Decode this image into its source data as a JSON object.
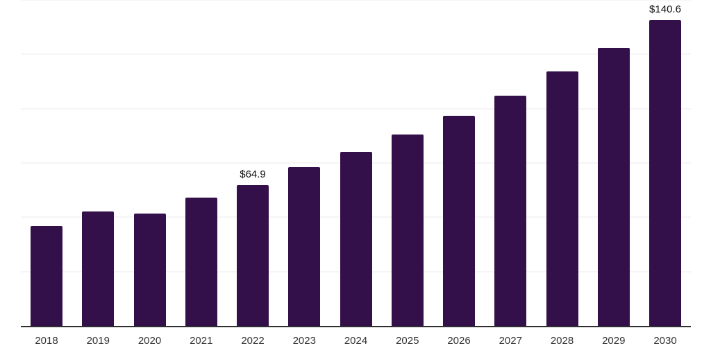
{
  "chart_data": {
    "type": "bar",
    "title": "",
    "xlabel": "",
    "ylabel": "",
    "categories": [
      "2018",
      "2019",
      "2020",
      "2021",
      "2022",
      "2023",
      "2024",
      "2025",
      "2026",
      "2027",
      "2028",
      "2029",
      "2030"
    ],
    "values": [
      46.0,
      52.7,
      51.6,
      59.0,
      64.9,
      73.2,
      80.0,
      88.0,
      96.6,
      106.1,
      117.0,
      128.0,
      140.6
    ],
    "value_labels": [
      "",
      "",
      "",
      "",
      "$64.9",
      "",
      "",
      "",
      "",
      "",
      "",
      "",
      "$140.6"
    ],
    "ylim": [
      0,
      150
    ],
    "gridline_values": [
      25,
      50,
      75,
      100,
      125,
      150
    ],
    "y_tick_labels_shown": false,
    "legend": "none",
    "grid": "horizontal",
    "colors": {
      "bar": "#34104b",
      "axis_line": "#2e2e2e",
      "gridline": "#f5f5f5",
      "tick_label": "#333333",
      "value_label": "#111111",
      "background": "#ffffff"
    }
  }
}
